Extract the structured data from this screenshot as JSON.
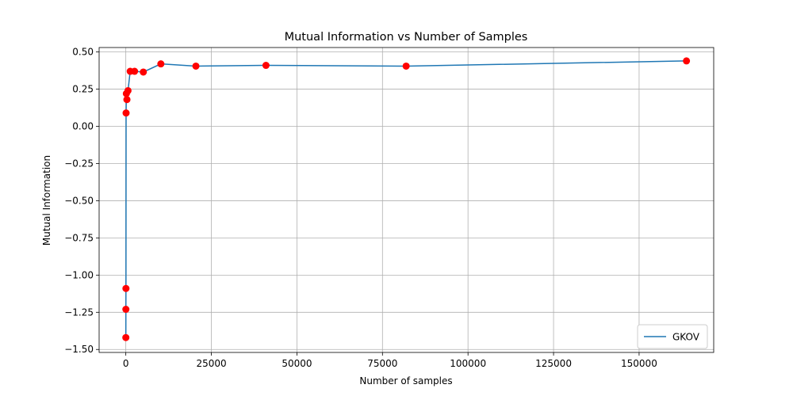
{
  "chart_data": {
    "type": "line",
    "title": "Mutual Information vs Number of Samples",
    "xlabel": "Number of samples",
    "ylabel": "Mutual Information",
    "xlim": [
      -7800,
      171800
    ],
    "ylim": [
      -1.52,
      0.53
    ],
    "x_ticks": [
      0,
      25000,
      50000,
      75000,
      100000,
      125000,
      150000
    ],
    "y_ticks": [
      -1.5,
      -1.25,
      -1.0,
      -0.75,
      -0.5,
      -0.25,
      0.0,
      0.25,
      0.5
    ],
    "x_tick_labels": [
      "0",
      "25000",
      "50000",
      "75000",
      "100000",
      "125000",
      "150000"
    ],
    "y_tick_labels": [
      "−1.50",
      "−1.25",
      "−1.00",
      "−0.75",
      "−0.50",
      "−0.25",
      "0.00",
      "0.25",
      "0.50"
    ],
    "grid": true,
    "legend_position": "lower-right",
    "series": [
      {
        "name": "GKOV",
        "line_color": "#1f77b4",
        "marker_color": "#ff0000",
        "x": [
          10,
          20,
          40,
          80,
          160,
          320,
          640,
          1280,
          2560,
          5120,
          10240,
          20480,
          40960,
          81920,
          163840
        ],
        "y": [
          -1.42,
          -1.23,
          -1.09,
          0.09,
          0.22,
          0.18,
          0.24,
          0.37,
          0.37,
          0.365,
          0.42,
          0.405,
          0.41,
          0.405,
          0.44
        ]
      }
    ]
  }
}
